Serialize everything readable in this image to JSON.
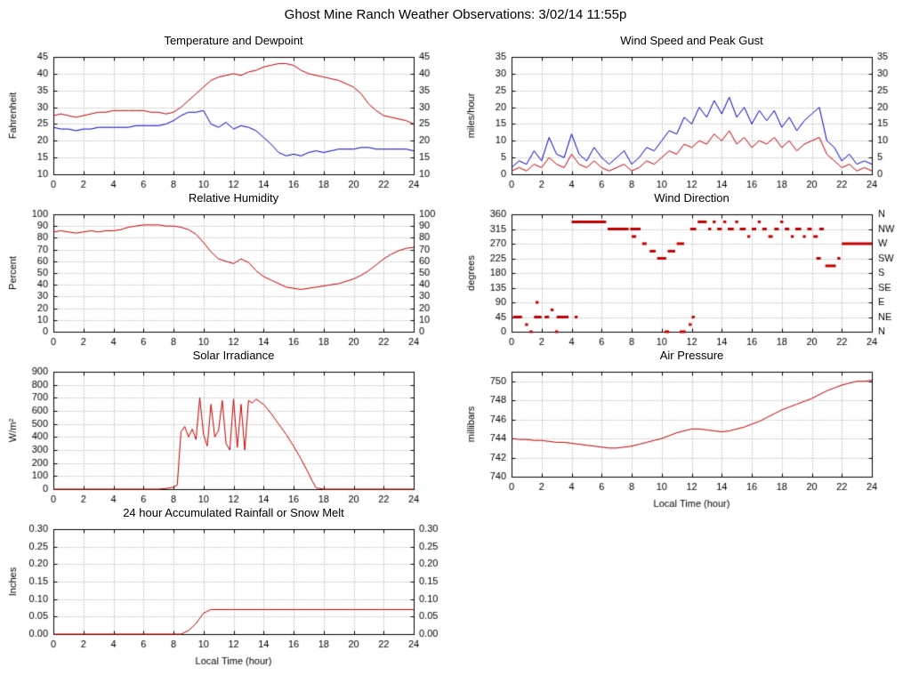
{
  "page_title": "Ghost Mine Ranch Weather Observations: 3/02/14 11:55p",
  "colors": {
    "red": "#c00000",
    "blue": "#0000c0",
    "grid": "#9a9a9a",
    "axis": "#000000"
  },
  "xlabel_text": "Local Time (hour)",
  "chart_data": [
    {
      "type": "line",
      "title": "Temperature and Dewpoint",
      "ylabel": "Fahrenheit",
      "xlabel": "",
      "ylim": [
        10,
        45
      ],
      "ytick": 5,
      "ydecimals": 0,
      "xlim": [
        0,
        24
      ],
      "xtick": 2,
      "mirror_right": true,
      "series": [
        {
          "name": "Temperature",
          "color": "#c00000",
          "x": [
            0,
            0.5,
            1,
            1.5,
            2,
            2.5,
            3,
            3.5,
            4,
            4.5,
            5,
            5.5,
            6,
            6.5,
            7,
            7.5,
            8,
            8.5,
            9,
            9.5,
            10,
            10.5,
            11,
            11.5,
            12,
            12.5,
            13,
            13.5,
            14,
            14.5,
            15,
            15.5,
            16,
            16.5,
            17,
            17.5,
            18,
            18.5,
            19,
            19.5,
            20,
            20.5,
            21,
            21.5,
            22,
            22.5,
            23,
            23.5,
            24
          ],
          "y": [
            27.5,
            28,
            27.5,
            27,
            27.5,
            28,
            28.5,
            28.5,
            29,
            29,
            29,
            29,
            29,
            28.5,
            28.5,
            28,
            28.5,
            30,
            32,
            34,
            36,
            38,
            39,
            39.5,
            40,
            39.5,
            40.5,
            41,
            42,
            42.5,
            43,
            43,
            42.5,
            41,
            40,
            39.5,
            39,
            38.5,
            38,
            37,
            36,
            34,
            31,
            29,
            27.5,
            27,
            26.5,
            26,
            25
          ]
        },
        {
          "name": "Dewpoint",
          "color": "#0000c0",
          "x": [
            0,
            0.5,
            1,
            1.5,
            2,
            2.5,
            3,
            3.5,
            4,
            4.5,
            5,
            5.5,
            6,
            6.5,
            7,
            7.5,
            8,
            8.5,
            9,
            9.5,
            10,
            10.5,
            11,
            11.5,
            12,
            12.5,
            13,
            13.5,
            14,
            14.5,
            15,
            15.5,
            16,
            16.5,
            17,
            17.5,
            18,
            18.5,
            19,
            19.5,
            20,
            20.5,
            21,
            21.5,
            22,
            22.5,
            23,
            23.5,
            24
          ],
          "y": [
            24,
            23.5,
            23.5,
            23,
            23.5,
            23.5,
            24,
            24,
            24,
            24,
            24,
            24.5,
            24.5,
            24.5,
            24.5,
            25,
            26,
            27.5,
            28.5,
            28.5,
            29,
            25,
            24,
            25.5,
            23.5,
            24.5,
            24,
            23,
            21,
            19,
            16.5,
            15.5,
            16,
            15.5,
            16.5,
            17,
            16.5,
            17,
            17.5,
            17.5,
            17.5,
            18,
            18,
            17.5,
            17.5,
            17.5,
            17.5,
            17.5,
            17
          ]
        }
      ]
    },
    {
      "type": "line",
      "title": "Wind Speed and Peak Gust",
      "ylabel": "miles/hour",
      "xlabel": "",
      "ylim": [
        0,
        35
      ],
      "ytick": 5,
      "ydecimals": 0,
      "xlim": [
        0,
        24
      ],
      "xtick": 2,
      "mirror_right": true,
      "series": [
        {
          "name": "Peak Gust",
          "color": "#0000c0",
          "x": [
            0,
            0.5,
            1,
            1.5,
            2,
            2.5,
            3,
            3.5,
            4,
            4.5,
            5,
            5.5,
            6,
            6.5,
            7,
            7.5,
            8,
            8.5,
            9,
            9.5,
            10,
            10.5,
            11,
            11.5,
            12,
            12.5,
            13,
            13.5,
            14,
            14.5,
            15,
            15.5,
            16,
            16.5,
            17,
            17.5,
            18,
            18.5,
            19,
            19.5,
            20,
            20.5,
            21,
            21.5,
            22,
            22.5,
            23,
            23.5,
            24
          ],
          "y": [
            2,
            4,
            3,
            7,
            4,
            11,
            6,
            5,
            12,
            6,
            4,
            8,
            5,
            3,
            5,
            7,
            3,
            5,
            8,
            7,
            10,
            13,
            12,
            17,
            15,
            20,
            17,
            22,
            18,
            23,
            17,
            20,
            15,
            19,
            16,
            19,
            14,
            17,
            13,
            16,
            18,
            20,
            10,
            8,
            4,
            6,
            3,
            4,
            3
          ]
        },
        {
          "name": "Wind Speed",
          "color": "#c00000",
          "x": [
            0,
            0.5,
            1,
            1.5,
            2,
            2.5,
            3,
            3.5,
            4,
            4.5,
            5,
            5.5,
            6,
            6.5,
            7,
            7.5,
            8,
            8.5,
            9,
            9.5,
            10,
            10.5,
            11,
            11.5,
            12,
            12.5,
            13,
            13.5,
            14,
            14.5,
            15,
            15.5,
            16,
            16.5,
            17,
            17.5,
            18,
            18.5,
            19,
            19.5,
            20,
            20.5,
            21,
            21.5,
            22,
            22.5,
            23,
            23.5,
            24
          ],
          "y": [
            1,
            2,
            1,
            3,
            2,
            5,
            3,
            2,
            6,
            3,
            2,
            4,
            2,
            1,
            2,
            3,
            1,
            2,
            4,
            3,
            5,
            7,
            6,
            9,
            8,
            10,
            9,
            12,
            10,
            13,
            9,
            11,
            8,
            10,
            9,
            11,
            8,
            10,
            7,
            9,
            10,
            11,
            6,
            4,
            2,
            3,
            1,
            2,
            1
          ]
        }
      ]
    },
    {
      "type": "line",
      "title": "Relative Humidity",
      "ylabel": "Percent",
      "xlabel": "",
      "ylim": [
        0,
        100
      ],
      "ytick": 10,
      "ydecimals": 0,
      "xlim": [
        0,
        24
      ],
      "xtick": 2,
      "mirror_right": true,
      "series": [
        {
          "name": "Relative Humidity",
          "color": "#c00000",
          "x": [
            0,
            0.5,
            1,
            1.5,
            2,
            2.5,
            3,
            3.5,
            4,
            4.5,
            5,
            5.5,
            6,
            6.5,
            7,
            7.5,
            8,
            8.5,
            9,
            9.5,
            10,
            10.5,
            11,
            11.5,
            12,
            12.5,
            13,
            13.5,
            14,
            14.5,
            15,
            15.5,
            16,
            16.5,
            17,
            17.5,
            18,
            18.5,
            19,
            19.5,
            20,
            20.5,
            21,
            21.5,
            22,
            22.5,
            23,
            23.5,
            24
          ],
          "y": [
            85,
            86,
            85,
            84,
            85,
            86,
            85,
            86,
            86,
            87,
            89,
            90,
            91,
            91,
            91,
            90,
            90,
            89,
            87,
            83,
            76,
            68,
            62,
            60,
            58,
            62,
            59,
            52,
            47,
            44,
            41,
            38,
            37,
            36,
            37,
            38,
            39,
            40,
            41,
            43,
            45,
            48,
            52,
            57,
            62,
            66,
            69,
            71,
            72
          ]
        }
      ]
    },
    {
      "type": "segments",
      "title": "Wind Direction",
      "ylabel": "degrees",
      "xlabel": "",
      "ylim": [
        0,
        360
      ],
      "ytick": 45,
      "ydecimals": 0,
      "xlim": [
        0,
        24
      ],
      "xtick": 2,
      "mirror_right": false,
      "right_categories": [
        "N",
        "NE",
        "E",
        "SE",
        "S",
        "SW",
        "W",
        "NW",
        "N"
      ],
      "segment_color": "#c00000",
      "segments": [
        [
          0.1,
          0.7,
          45
        ],
        [
          0.9,
          1.1,
          22
        ],
        [
          1.2,
          1.4,
          0
        ],
        [
          1.5,
          2.0,
          45
        ],
        [
          1.6,
          1.8,
          90
        ],
        [
          2.2,
          2.5,
          45
        ],
        [
          2.6,
          2.8,
          67
        ],
        [
          2.9,
          3.1,
          0
        ],
        [
          3.0,
          3.8,
          45
        ],
        [
          4.2,
          4.4,
          45
        ],
        [
          4.0,
          6.3,
          337
        ],
        [
          6.4,
          7.8,
          315
        ],
        [
          7.9,
          8.6,
          315
        ],
        [
          8.0,
          8.3,
          292
        ],
        [
          8.7,
          9.0,
          270
        ],
        [
          9.2,
          9.6,
          247
        ],
        [
          9.7,
          10.3,
          225
        ],
        [
          10.4,
          10.9,
          247
        ],
        [
          10.2,
          10.5,
          0
        ],
        [
          11.0,
          11.5,
          270
        ],
        [
          11.2,
          11.6,
          0
        ],
        [
          11.8,
          12.0,
          22
        ],
        [
          12.0,
          12.2,
          45
        ],
        [
          11.9,
          12.3,
          315
        ],
        [
          12.4,
          13.0,
          337
        ],
        [
          13.1,
          13.3,
          315
        ],
        [
          13.4,
          13.6,
          337
        ],
        [
          13.7,
          14.0,
          315
        ],
        [
          14.1,
          14.3,
          337
        ],
        [
          14.4,
          14.8,
          315
        ],
        [
          14.9,
          15.1,
          337
        ],
        [
          15.2,
          15.6,
          315
        ],
        [
          15.7,
          15.9,
          292
        ],
        [
          16.0,
          16.3,
          315
        ],
        [
          16.4,
          16.6,
          337
        ],
        [
          16.7,
          17.0,
          315
        ],
        [
          17.1,
          17.4,
          292
        ],
        [
          17.5,
          17.8,
          315
        ],
        [
          17.9,
          18.1,
          337
        ],
        [
          18.2,
          18.5,
          315
        ],
        [
          18.6,
          18.8,
          292
        ],
        [
          18.9,
          19.3,
          315
        ],
        [
          19.4,
          19.6,
          292
        ],
        [
          19.7,
          20.0,
          315
        ],
        [
          20.1,
          20.4,
          292
        ],
        [
          20.5,
          20.8,
          315
        ],
        [
          20.3,
          20.6,
          225
        ],
        [
          20.9,
          21.6,
          202
        ],
        [
          21.7,
          21.9,
          225
        ],
        [
          22.0,
          24.0,
          270
        ]
      ]
    },
    {
      "type": "line",
      "title": "Solar Irradiance",
      "ylabel": "W/m²",
      "xlabel": "",
      "ylim": [
        0,
        900
      ],
      "ytick": 100,
      "ydecimals": 0,
      "xlim": [
        0,
        24
      ],
      "xtick": 2,
      "mirror_right": false,
      "series": [
        {
          "name": "Solar Irradiance",
          "color": "#c00000",
          "x": [
            0,
            7,
            7.5,
            8,
            8.25,
            8.5,
            8.75,
            9,
            9.25,
            9.5,
            9.75,
            10,
            10.25,
            10.5,
            10.75,
            11,
            11.25,
            11.5,
            11.75,
            12,
            12.25,
            12.5,
            12.75,
            13,
            13.25,
            13.5,
            13.75,
            14,
            14.5,
            15,
            15.5,
            16,
            16.5,
            17,
            17.25,
            17.5,
            18,
            24
          ],
          "y": [
            0,
            0,
            5,
            15,
            30,
            440,
            480,
            400,
            460,
            380,
            700,
            420,
            330,
            650,
            400,
            450,
            680,
            350,
            300,
            690,
            320,
            650,
            300,
            680,
            660,
            690,
            670,
            650,
            580,
            500,
            420,
            330,
            230,
            120,
            60,
            10,
            0,
            0
          ]
        }
      ]
    },
    {
      "type": "line",
      "title": "Air Pressure",
      "ylabel": "millibars",
      "xlabel": "Local Time (hour)",
      "ylim": [
        740,
        751
      ],
      "ytick": 2,
      "ydecimals": 0,
      "xlim": [
        0,
        24
      ],
      "xtick": 2,
      "mirror_right": false,
      "series": [
        {
          "name": "Air Pressure",
          "color": "#c00000",
          "x": [
            0,
            0.5,
            1,
            1.5,
            2,
            2.5,
            3,
            3.5,
            4,
            4.5,
            5,
            5.5,
            6,
            6.5,
            7,
            7.5,
            8,
            8.5,
            9,
            9.5,
            10,
            10.5,
            11,
            11.5,
            12,
            12.5,
            13,
            13.5,
            14,
            14.5,
            15,
            15.5,
            16,
            16.5,
            17,
            17.5,
            18,
            18.5,
            19,
            19.5,
            20,
            20.5,
            21,
            21.5,
            22,
            22.5,
            23,
            23.5,
            24
          ],
          "y": [
            744,
            743.9,
            743.9,
            743.8,
            743.8,
            743.7,
            743.6,
            743.6,
            743.5,
            743.4,
            743.3,
            743.2,
            743.1,
            743,
            743,
            743.1,
            743.2,
            743.4,
            743.6,
            743.8,
            744,
            744.3,
            744.6,
            744.8,
            745,
            745,
            744.9,
            744.8,
            744.7,
            744.8,
            745,
            745.2,
            745.5,
            745.8,
            746.2,
            746.6,
            747,
            747.3,
            747.6,
            747.9,
            748.2,
            748.6,
            749,
            749.3,
            749.6,
            749.8,
            750,
            750,
            750.1
          ]
        }
      ]
    },
    {
      "type": "line",
      "title": "24 hour Accumulated Rainfall or Snow Melt",
      "ylabel": "Inches",
      "xlabel": "Local Time (hour)",
      "ylim": [
        0,
        0.3
      ],
      "ytick": 0.05,
      "ydecimals": 2,
      "xlim": [
        0,
        24
      ],
      "xtick": 2,
      "mirror_right": true,
      "series": [
        {
          "name": "Accumulated Rainfall",
          "color": "#c00000",
          "x": [
            0,
            8.5,
            9,
            9.5,
            10,
            10.5,
            24
          ],
          "y": [
            0,
            0,
            0.01,
            0.03,
            0.06,
            0.07,
            0.07
          ]
        }
      ]
    }
  ]
}
